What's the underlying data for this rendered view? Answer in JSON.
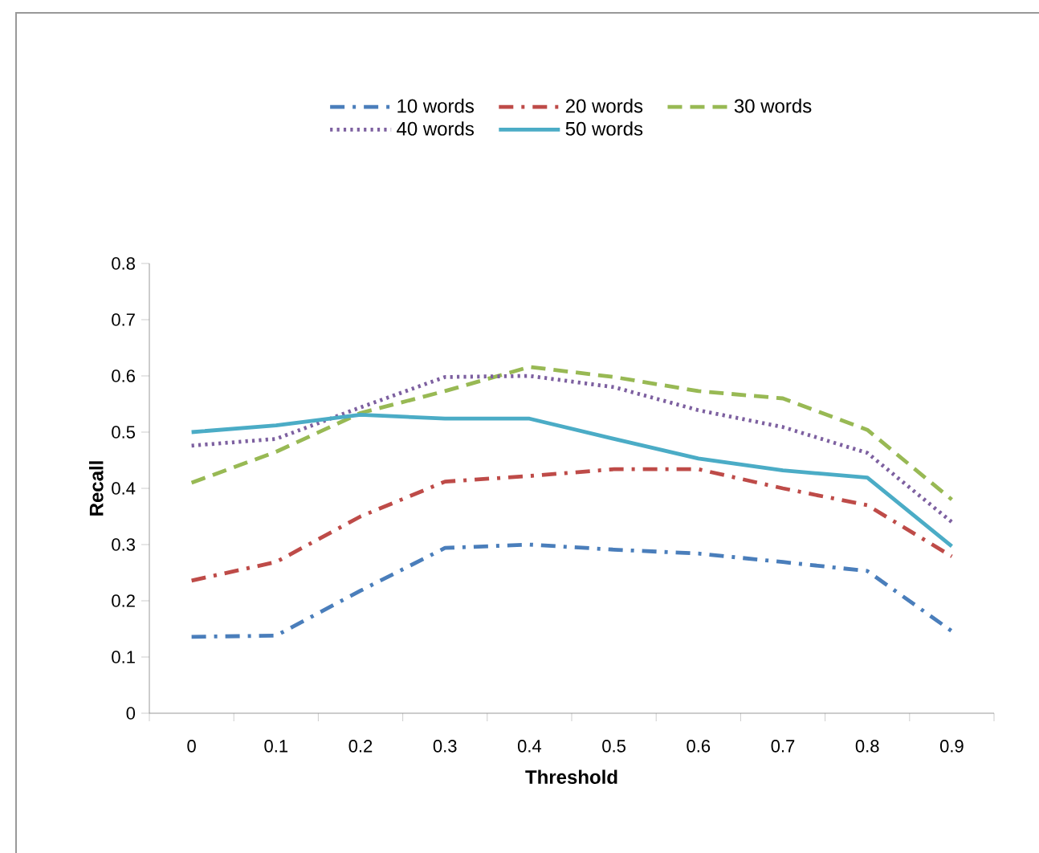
{
  "chart_data": {
    "type": "line",
    "xlabel": "Threshold",
    "ylabel": "Recall",
    "categories": [
      "0",
      "0.1",
      "0.2",
      "0.3",
      "0.4",
      "0.5",
      "0.6",
      "0.7",
      "0.8",
      "0.9"
    ],
    "ylim": [
      0,
      0.8
    ],
    "yticks": [
      0,
      0.1,
      0.2,
      0.3,
      0.4,
      0.5,
      0.6,
      0.7,
      0.8
    ],
    "grid": false,
    "legend": "top",
    "marker": "none",
    "series": [
      {
        "name": "10 words",
        "color": "#4a7ebb",
        "line_style": "dashdot",
        "values": [
          0.136,
          0.138,
          0.218,
          0.294,
          0.3,
          0.291,
          0.284,
          0.269,
          0.253,
          0.146
        ]
      },
      {
        "name": "20 words",
        "color": "#be4b48",
        "line_style": "dashdot",
        "values": [
          0.236,
          0.269,
          0.35,
          0.412,
          0.422,
          0.434,
          0.434,
          0.4,
          0.37,
          0.279
        ]
      },
      {
        "name": "30 words",
        "color": "#98b954",
        "line_style": "dashed",
        "values": [
          0.41,
          0.465,
          0.534,
          0.573,
          0.616,
          0.598,
          0.573,
          0.56,
          0.504,
          0.38
        ]
      },
      {
        "name": "40 words",
        "color": "#7d60a0",
        "line_style": "dotted",
        "values": [
          0.476,
          0.488,
          0.544,
          0.598,
          0.6,
          0.58,
          0.539,
          0.509,
          0.463,
          0.34
        ]
      },
      {
        "name": "50 words",
        "color": "#4bacc6",
        "line_style": "solid",
        "values": [
          0.5,
          0.512,
          0.531,
          0.524,
          0.524,
          0.488,
          0.453,
          0.432,
          0.419,
          0.297
        ]
      }
    ]
  }
}
